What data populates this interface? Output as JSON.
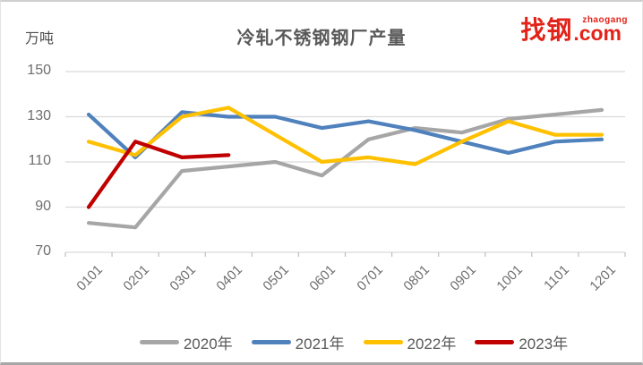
{
  "header": {
    "unit": "万吨",
    "title": "冷轧不锈钢钢厂产量",
    "logo": {
      "cn": "找钢",
      "latin": "zhaogang",
      "suffix": ".com",
      "color": "#e2231a"
    }
  },
  "chart_data": {
    "type": "line",
    "title": "冷轧不锈钢钢厂产量",
    "ylabel": "万吨",
    "categories": [
      "0101",
      "0201",
      "0301",
      "0401",
      "0501",
      "0601",
      "0701",
      "0801",
      "0901",
      "1001",
      "1101",
      "1201"
    ],
    "series": [
      {
        "name": "2020年",
        "color": "#A6A6A6",
        "values": [
          83,
          81,
          106,
          108,
          110,
          104,
          120,
          125,
          123,
          129,
          131,
          133
        ]
      },
      {
        "name": "2021年",
        "color": "#4F81BD",
        "values": [
          131,
          112,
          132,
          130,
          130,
          125,
          128,
          124,
          119,
          114,
          119,
          120
        ]
      },
      {
        "name": "2022年",
        "color": "#FFC000",
        "values": [
          119,
          113,
          130,
          134,
          122,
          110,
          112,
          109,
          119,
          128,
          122,
          122
        ]
      },
      {
        "name": "2023年",
        "color": "#C00000",
        "values": [
          90,
          119,
          112,
          113,
          null,
          null,
          null,
          null,
          null,
          null,
          null,
          null
        ]
      }
    ],
    "ylim": [
      70,
      150
    ],
    "yticks": [
      70,
      90,
      110,
      130,
      150
    ],
    "grid": "horizontal",
    "legend_position": "bottom",
    "gridline_color": "#D9D9D9",
    "tick_color": "#BFBFBF"
  }
}
